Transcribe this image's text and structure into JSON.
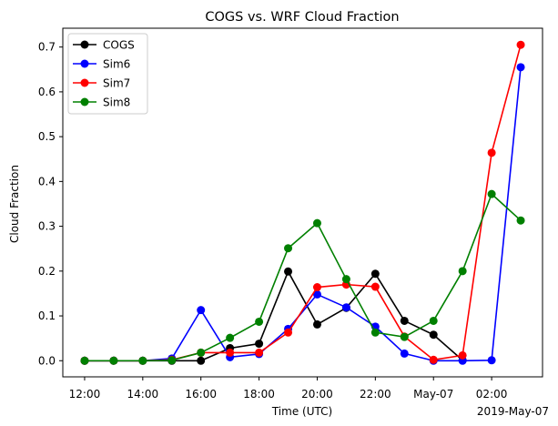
{
  "chart_data": {
    "type": "line",
    "title": "COGS vs. WRF Cloud Fraction",
    "xlabel": "Time (UTC)",
    "ylabel": "Cloud Fraction",
    "x_offset_label": "2019-May-07",
    "x": [
      "2019-05-06 12:00",
      "2019-05-06 13:00",
      "2019-05-06 14:00",
      "2019-05-06 15:00",
      "2019-05-06 16:00",
      "2019-05-06 17:00",
      "2019-05-06 18:00",
      "2019-05-06 19:00",
      "2019-05-06 20:00",
      "2019-05-06 21:00",
      "2019-05-06 22:00",
      "2019-05-06 23:00",
      "2019-05-07 00:00",
      "2019-05-07 01:00",
      "2019-05-07 02:00",
      "2019-05-07 03:00"
    ],
    "xticks": [
      "12:00",
      "14:00",
      "16:00",
      "18:00",
      "20:00",
      "22:00",
      "May-07",
      "02:00"
    ],
    "xtick_values": [
      "2019-05-06 12:00",
      "2019-05-06 14:00",
      "2019-05-06 16:00",
      "2019-05-06 18:00",
      "2019-05-06 20:00",
      "2019-05-06 22:00",
      "2019-05-07 00:00",
      "2019-05-07 02:00"
    ],
    "yticks": [
      "0.0",
      "0.1",
      "0.2",
      "0.3",
      "0.4",
      "0.5",
      "0.6",
      "0.7"
    ],
    "ylim": [
      -0.036,
      0.742
    ],
    "xlim": [
      "2019-05-06 11:15",
      "2019-05-07 03:45"
    ],
    "grid": false,
    "legend_position": "top-left",
    "series": [
      {
        "name": "COGS",
        "color": "#000000",
        "values": [
          0.0,
          0.0,
          0.0,
          0.0,
          0.0,
          0.028,
          0.038,
          0.199,
          0.081,
          0.118,
          0.194,
          0.089,
          0.058,
          null,
          null,
          null
        ]
      },
      {
        "name": "Sim6",
        "color": "#0000ff",
        "values": [
          0.0,
          0.0,
          0.0,
          0.005,
          0.113,
          0.008,
          0.015,
          0.071,
          0.148,
          0.119,
          0.076,
          0.016,
          0.0,
          0.0,
          0.001,
          0.655
        ]
      },
      {
        "name": "Sim7",
        "color": "#ff0000",
        "values": [
          0.0,
          0.0,
          0.0,
          0.002,
          0.018,
          0.018,
          0.018,
          0.063,
          0.164,
          0.17,
          0.165,
          0.054,
          0.002,
          0.012,
          0.464,
          0.705
        ]
      },
      {
        "name": "Sim8",
        "color": "#008000",
        "values": [
          0.0,
          0.0,
          0.0,
          0.001,
          0.018,
          0.051,
          0.087,
          0.251,
          0.307,
          0.182,
          0.063,
          0.053,
          0.089,
          0.2,
          0.372,
          0.313
        ]
      }
    ],
    "cogs_extra": {
      "x": "2019-05-07 01:00",
      "value": 0.001
    }
  }
}
